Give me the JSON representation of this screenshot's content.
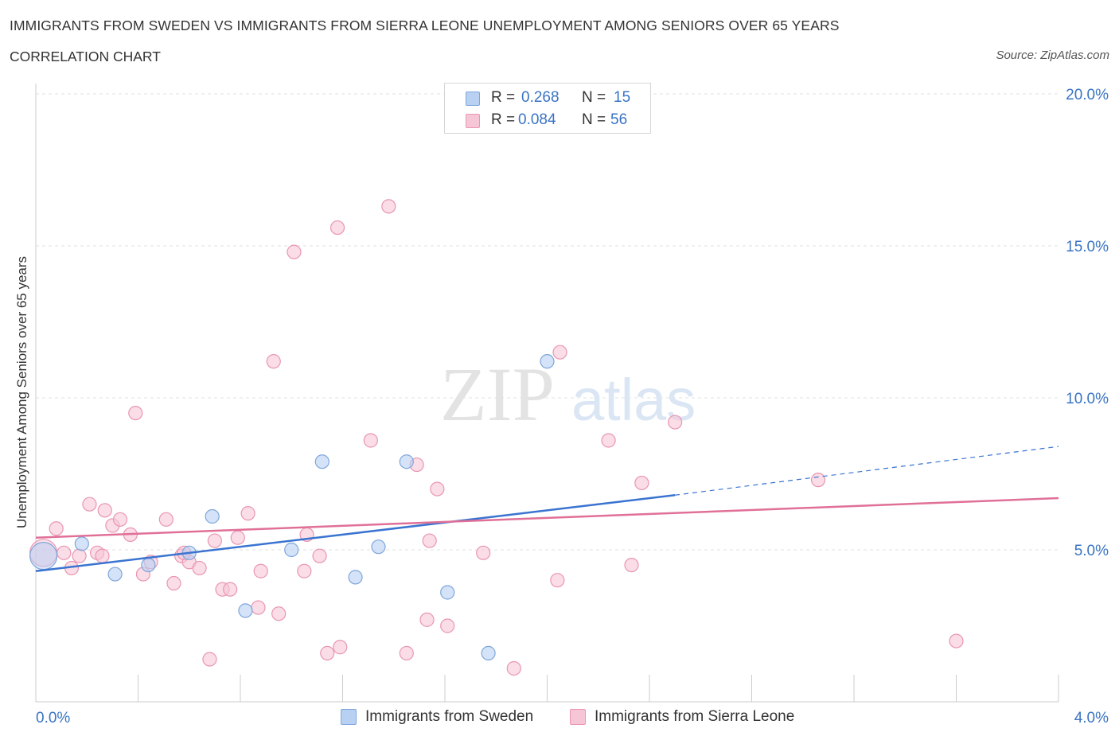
{
  "title": "IMMIGRANTS FROM SWEDEN VS IMMIGRANTS FROM SIERRA LEONE UNEMPLOYMENT AMONG SENIORS OVER 65 YEARS",
  "subtitle": "CORRELATION CHART",
  "source": "Source: ZipAtlas.com",
  "watermark": {
    "zip": "ZIP",
    "atlas": "atlas"
  },
  "colors": {
    "sweden_fill": "#b8d0f2",
    "sweden_stroke": "#7fa6dc",
    "sweden_line": "#3a74d0",
    "sierra_fill": "#f7c6d6",
    "sierra_stroke": "#e996b2",
    "sierra_line": "#e07098",
    "value_text": "#3a74c4",
    "grid": "#e2e2e2"
  },
  "legend": {
    "rows": [
      {
        "r_label": "R =",
        "r_value": "0.268",
        "n_label": "N =",
        "n_value": "15"
      },
      {
        "r_label": "R =",
        "r_value": "0.084",
        "n_label": "N =",
        "n_value": "56"
      }
    ]
  },
  "bottom_legend": {
    "sweden": "Immigrants from Sweden",
    "sierra": "Immigrants from Sierra Leone"
  },
  "chart_data": {
    "type": "scatter",
    "title": "IMMIGRANTS FROM SWEDEN VS IMMIGRANTS FROM SIERRA LEONE UNEMPLOYMENT AMONG SENIORS OVER 65 YEARS",
    "xlabel": "",
    "ylabel": "Unemployment Among Seniors over 65 years",
    "xlim": [
      0,
      4.0
    ],
    "ylim": [
      0,
      20.0
    ],
    "x_tick_labels": [
      "0.0%",
      "4.0%"
    ],
    "y_ticks": [
      5,
      10,
      15,
      20
    ],
    "y_tick_labels": [
      "5.0%",
      "10.0%",
      "15.0%",
      "20.0%"
    ],
    "grid": true,
    "legend_position": "top-center",
    "series": [
      {
        "name": "Immigrants from Sweden",
        "R": 0.268,
        "N": 15,
        "trend": {
          "x": [
            0,
            2.5
          ],
          "y": [
            4.3,
            6.8
          ],
          "dashed_extension_to": [
            4.0,
            8.4
          ]
        },
        "points": [
          {
            "x": 0.03,
            "y": 4.8,
            "big": true
          },
          {
            "x": 0.18,
            "y": 5.2
          },
          {
            "x": 0.31,
            "y": 4.2
          },
          {
            "x": 0.44,
            "y": 4.5
          },
          {
            "x": 0.6,
            "y": 4.9
          },
          {
            "x": 0.69,
            "y": 6.1
          },
          {
            "x": 0.82,
            "y": 3.0
          },
          {
            "x": 1.0,
            "y": 5.0
          },
          {
            "x": 1.12,
            "y": 7.9
          },
          {
            "x": 1.25,
            "y": 4.1
          },
          {
            "x": 1.34,
            "y": 5.1
          },
          {
            "x": 1.45,
            "y": 7.9
          },
          {
            "x": 1.61,
            "y": 3.6
          },
          {
            "x": 1.77,
            "y": 1.6
          },
          {
            "x": 2.0,
            "y": 11.2
          }
        ]
      },
      {
        "name": "Immigrants from Sierra Leone",
        "R": 0.084,
        "N": 56,
        "trend": {
          "x": [
            0,
            4.0
          ],
          "y": [
            5.4,
            6.7
          ]
        },
        "points": [
          {
            "x": 0.03,
            "y": 4.9,
            "big": true
          },
          {
            "x": 0.08,
            "y": 5.7
          },
          {
            "x": 0.11,
            "y": 4.9
          },
          {
            "x": 0.14,
            "y": 4.4
          },
          {
            "x": 0.17,
            "y": 4.8
          },
          {
            "x": 0.21,
            "y": 6.5
          },
          {
            "x": 0.24,
            "y": 4.9
          },
          {
            "x": 0.27,
            "y": 6.3
          },
          {
            "x": 0.3,
            "y": 5.8
          },
          {
            "x": 0.33,
            "y": 6.0
          },
          {
            "x": 0.37,
            "y": 5.5
          },
          {
            "x": 0.39,
            "y": 9.5
          },
          {
            "x": 0.42,
            "y": 4.2
          },
          {
            "x": 0.45,
            "y": 4.6
          },
          {
            "x": 0.51,
            "y": 6.0
          },
          {
            "x": 0.54,
            "y": 3.9
          },
          {
            "x": 0.57,
            "y": 4.8
          },
          {
            "x": 0.6,
            "y": 4.6
          },
          {
            "x": 0.64,
            "y": 4.4
          },
          {
            "x": 0.68,
            "y": 1.4
          },
          {
            "x": 0.7,
            "y": 5.3
          },
          {
            "x": 0.73,
            "y": 3.7
          },
          {
            "x": 0.76,
            "y": 3.7
          },
          {
            "x": 0.79,
            "y": 5.4
          },
          {
            "x": 0.83,
            "y": 6.2
          },
          {
            "x": 0.87,
            "y": 3.1
          },
          {
            "x": 0.88,
            "y": 4.3
          },
          {
            "x": 0.93,
            "y": 11.2
          },
          {
            "x": 0.95,
            "y": 2.9
          },
          {
            "x": 1.01,
            "y": 14.8
          },
          {
            "x": 1.05,
            "y": 4.3
          },
          {
            "x": 1.06,
            "y": 5.5
          },
          {
            "x": 1.11,
            "y": 4.8
          },
          {
            "x": 1.14,
            "y": 1.6
          },
          {
            "x": 1.18,
            "y": 15.6
          },
          {
            "x": 1.19,
            "y": 1.8
          },
          {
            "x": 1.31,
            "y": 8.6
          },
          {
            "x": 1.38,
            "y": 16.3
          },
          {
            "x": 1.45,
            "y": 1.6
          },
          {
            "x": 1.49,
            "y": 7.8
          },
          {
            "x": 1.53,
            "y": 2.7
          },
          {
            "x": 1.54,
            "y": 5.3
          },
          {
            "x": 1.57,
            "y": 7.0
          },
          {
            "x": 1.61,
            "y": 2.5
          },
          {
            "x": 1.75,
            "y": 4.9
          },
          {
            "x": 1.87,
            "y": 1.1
          },
          {
            "x": 2.04,
            "y": 4.0
          },
          {
            "x": 2.05,
            "y": 11.5
          },
          {
            "x": 2.24,
            "y": 8.6
          },
          {
            "x": 2.33,
            "y": 4.5
          },
          {
            "x": 2.37,
            "y": 7.2
          },
          {
            "x": 2.5,
            "y": 9.2
          },
          {
            "x": 3.06,
            "y": 7.3
          },
          {
            "x": 3.6,
            "y": 2.0
          },
          {
            "x": 0.58,
            "y": 4.9
          },
          {
            "x": 0.26,
            "y": 4.8
          }
        ]
      }
    ]
  }
}
